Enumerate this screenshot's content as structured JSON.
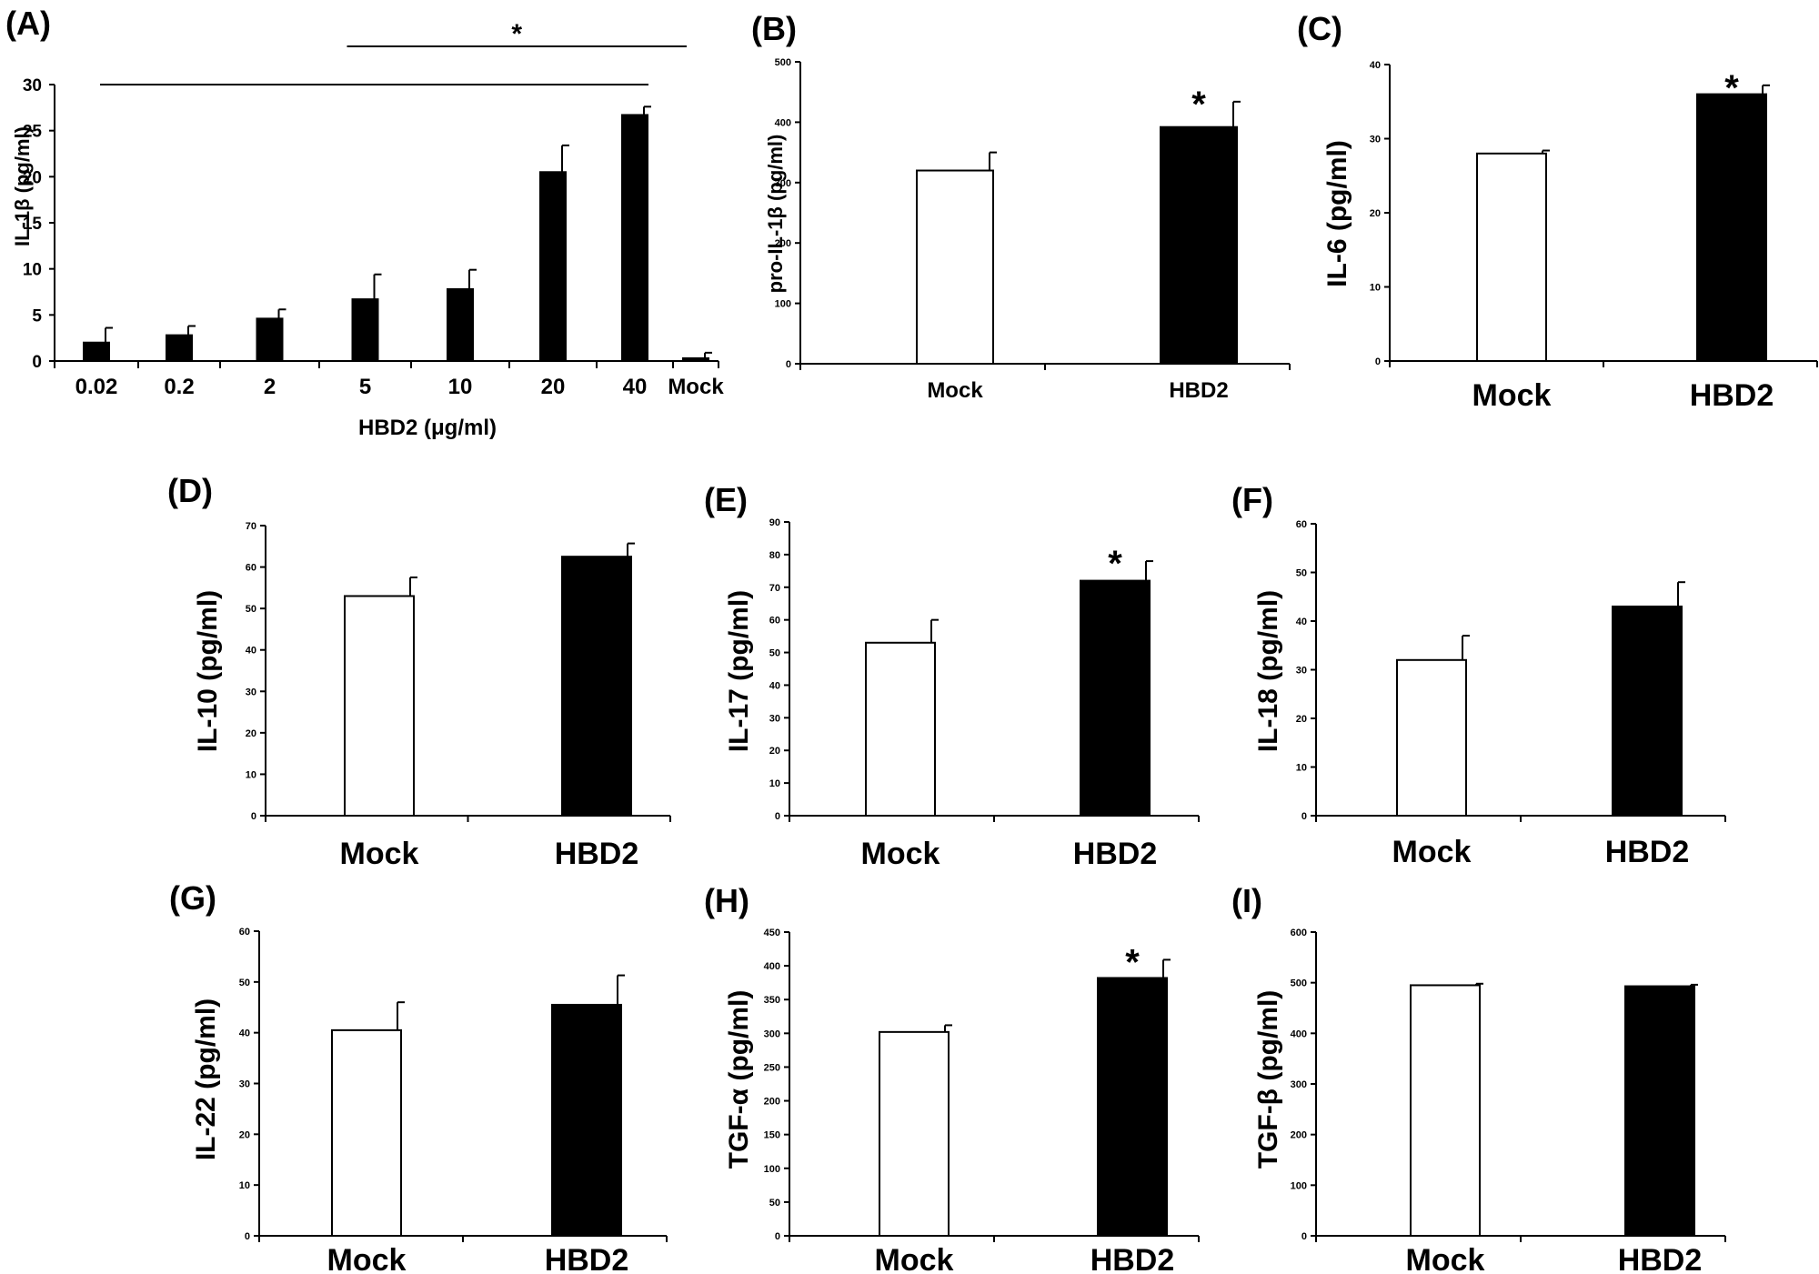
{
  "chart_data": [
    {
      "id": "A",
      "panel_label": "(A)",
      "type": "bar",
      "categories": [
        "0.02",
        "0.2",
        "2",
        "5",
        "10",
        "20",
        "40",
        "Mock"
      ],
      "values": [
        2.0,
        2.8,
        4.6,
        6.7,
        7.8,
        20.5,
        26.7,
        0.3
      ],
      "errors": [
        1.6,
        1.0,
        1.0,
        2.7,
        2.1,
        2.9,
        0.9,
        0.6
      ],
      "fills": [
        "#000000",
        "#000000",
        "#000000",
        "#000000",
        "#000000",
        "#000000",
        "#000000",
        "#000000"
      ],
      "ylabel": "IL-1β (pg/ml)",
      "xlabel": "HBD2 (μg/ml)",
      "ylim": [
        0,
        30
      ],
      "yticks": [
        "0",
        "5",
        "10",
        "15",
        "20",
        "25",
        "30"
      ],
      "significance": [
        {
          "from": 0,
          "to": 6
        },
        {
          "from": 3,
          "to": 7,
          "label": "*"
        }
      ]
    },
    {
      "id": "B",
      "panel_label": "(B)",
      "type": "bar",
      "categories": [
        "Mock",
        "HBD2"
      ],
      "values": [
        320,
        392
      ],
      "errors": [
        30,
        42
      ],
      "fills": [
        "#ffffff",
        "#000000"
      ],
      "ylabel": "pro-IL-1β (pg/ml)",
      "ylim": [
        0,
        500
      ],
      "yticks": [
        "0",
        "100",
        "200",
        "300",
        "400",
        "500"
      ],
      "star": "*"
    },
    {
      "id": "C",
      "panel_label": "(C)",
      "type": "bar",
      "categories": [
        "Mock",
        "HBD2"
      ],
      "values": [
        28,
        36
      ],
      "errors": [
        0.4,
        1.2
      ],
      "fills": [
        "#ffffff",
        "#000000"
      ],
      "ylabel": "IL-6 (pg/ml)",
      "ylim": [
        0,
        40
      ],
      "yticks": [
        "0",
        "10",
        "20",
        "30",
        "40"
      ],
      "star": "*"
    },
    {
      "id": "D",
      "panel_label": "(D)",
      "type": "bar",
      "categories": [
        "Mock",
        "HBD2"
      ],
      "values": [
        53,
        62.5
      ],
      "errors": [
        4.5,
        3.2
      ],
      "fills": [
        "#ffffff",
        "#000000"
      ],
      "ylabel": "IL-10 (pg/ml)",
      "ylim": [
        0,
        70
      ],
      "yticks": [
        "0",
        "10",
        "20",
        "30",
        "40",
        "50",
        "60",
        "70"
      ],
      "star": ""
    },
    {
      "id": "E",
      "panel_label": "(E)",
      "type": "bar",
      "categories": [
        "Mock",
        "HBD2"
      ],
      "values": [
        53,
        72
      ],
      "errors": [
        7,
        6
      ],
      "fills": [
        "#ffffff",
        "#000000"
      ],
      "ylabel": "IL-17 (pg/ml)",
      "ylim": [
        0,
        90
      ],
      "yticks": [
        "0",
        "10",
        "20",
        "30",
        "40",
        "50",
        "60",
        "70",
        "80",
        "90"
      ],
      "star": "*"
    },
    {
      "id": "F",
      "panel_label": "(F)",
      "type": "bar",
      "categories": [
        "Mock",
        "HBD2"
      ],
      "values": [
        32,
        43
      ],
      "errors": [
        5,
        5
      ],
      "fills": [
        "#ffffff",
        "#000000"
      ],
      "ylabel": "IL-18 (pg/ml)",
      "ylim": [
        0,
        60
      ],
      "yticks": [
        "0",
        "10",
        "20",
        "30",
        "40",
        "50",
        "60"
      ],
      "star": ""
    },
    {
      "id": "G",
      "panel_label": "(G)",
      "type": "bar",
      "categories": [
        "Mock",
        "HBD2"
      ],
      "values": [
        40.5,
        45.5
      ],
      "errors": [
        5.5,
        5.8
      ],
      "fills": [
        "#ffffff",
        "#000000"
      ],
      "ylabel": "IL-22 (pg/ml)",
      "ylim": [
        0,
        60
      ],
      "yticks": [
        "0",
        "10",
        "20",
        "30",
        "40",
        "50",
        "60"
      ],
      "star": ""
    },
    {
      "id": "H",
      "panel_label": "(H)",
      "type": "bar",
      "categories": [
        "Mock",
        "HBD2"
      ],
      "values": [
        302,
        382
      ],
      "errors": [
        10,
        27
      ],
      "fills": [
        "#ffffff",
        "#000000"
      ],
      "ylabel": "TGF-α (pg/ml)",
      "ylim": [
        0,
        450
      ],
      "yticks": [
        "0",
        "50",
        "100",
        "150",
        "200",
        "250",
        "300",
        "350",
        "400",
        "450"
      ],
      "star": "*"
    },
    {
      "id": "I",
      "panel_label": "(I)",
      "type": "bar",
      "categories": [
        "Mock",
        "HBD2"
      ],
      "values": [
        495,
        493
      ],
      "errors": [
        3,
        3
      ],
      "fills": [
        "#ffffff",
        "#000000"
      ],
      "ylabel": "TGF-β (pg/ml)",
      "ylim": [
        0,
        600
      ],
      "yticks": [
        "0",
        "100",
        "200",
        "300",
        "400",
        "500",
        "600"
      ],
      "star": ""
    }
  ]
}
